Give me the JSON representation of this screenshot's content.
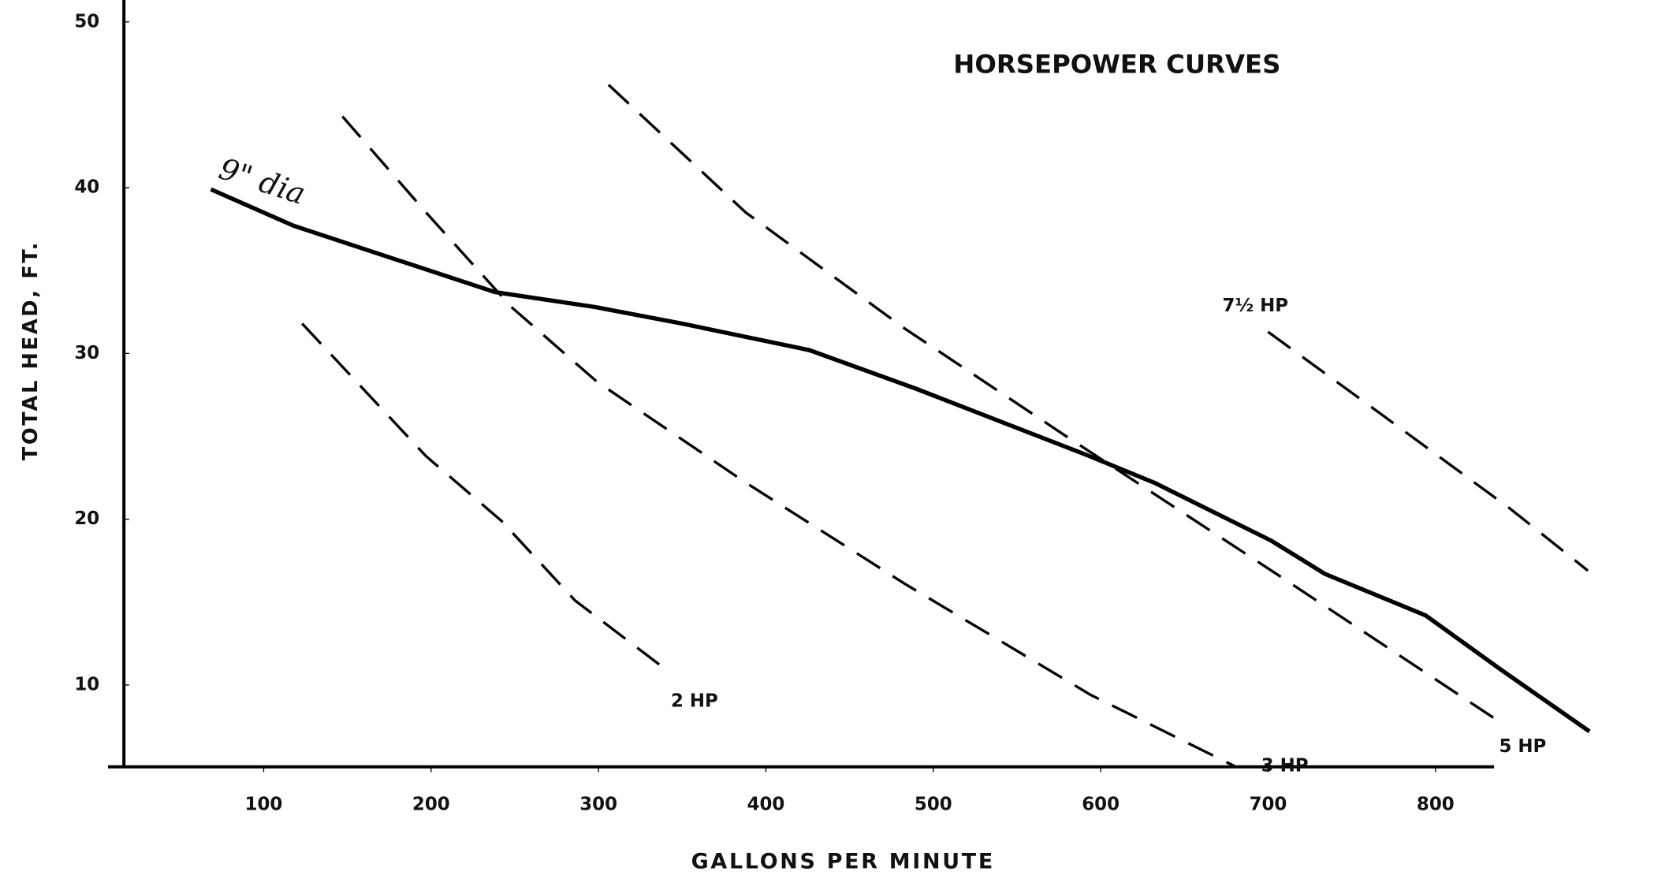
{
  "chart_data": {
    "type": "line",
    "title": "HORSEPOWER CURVES",
    "x_label": "GALLONS PER MINUTE",
    "y_label": "TOTAL HEAD, FT.",
    "xlim": [
      7,
      835
    ],
    "ylim": [
      5,
      51
    ],
    "xticks": [
      100,
      200,
      300,
      400,
      500,
      600,
      700,
      800
    ],
    "yticks": [
      10,
      20,
      30,
      40,
      50
    ],
    "grid": false,
    "series": [
      {
        "name": "9\" dia",
        "color": "#000000",
        "style": "solid",
        "x": [
          68.5,
          118,
          238,
          298,
          350,
          426,
          489,
          591,
          632,
          702,
          734,
          794,
          838,
          892
        ],
        "values": [
          39.9,
          37.7,
          33.7,
          32.8,
          31.8,
          30.2,
          27.9,
          23.9,
          22.2,
          18.7,
          16.7,
          14.2,
          11.0,
          7.2
        ]
      },
      {
        "name": "2 HP",
        "color": "#000000",
        "style": "dashed",
        "x": [
          123,
          197,
          242,
          286,
          342
        ],
        "values": [
          31.8,
          23.8,
          19.9,
          15.1,
          10.8
        ]
      },
      {
        "name": "3 HP",
        "color": "#000000",
        "style": "dashed",
        "x": [
          147,
          197,
          248,
          299,
          388,
          483,
          594,
          680
        ],
        "values": [
          44.3,
          38.5,
          32.8,
          28.3,
          22.2,
          16.1,
          9.4,
          5.1
        ]
      },
      {
        "name": "5 HP",
        "color": "#000000",
        "style": "dashed",
        "x": [
          306,
          388,
          483,
          578,
          705,
          838
        ],
        "values": [
          46.2,
          38.5,
          31.5,
          25.1,
          16.7,
          7.8
        ]
      },
      {
        "name": "7½ HP",
        "color": "#000000",
        "style": "dashed",
        "x": [
          700,
          768,
          845,
          891
        ],
        "values": [
          31.3,
          26.3,
          20.6,
          16.9
        ]
      }
    ]
  }
}
